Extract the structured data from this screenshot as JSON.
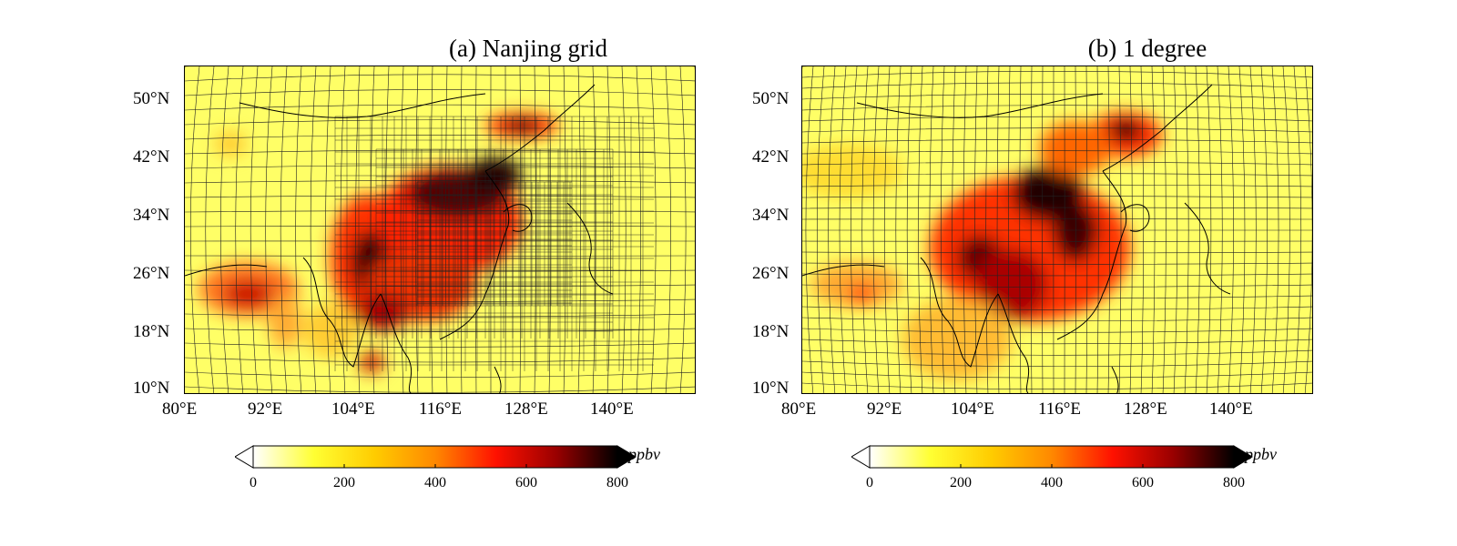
{
  "panels": [
    {
      "title": "(a) Nanjing grid",
      "grid": "stretched-cubed-sphere",
      "lat_labels": [
        "50°N",
        "42°N",
        "34°N",
        "26°N",
        "18°N",
        "10°N"
      ],
      "lon_labels": [
        "80°E",
        "92°E",
        "104°E",
        "116°E",
        "128°E",
        "140°E"
      ]
    },
    {
      "title": "(b) 1 degree",
      "grid": "cubed-sphere-1-degree",
      "lat_labels": [
        "50°N",
        "42°N",
        "34°N",
        "26°N",
        "18°N",
        "10°N"
      ],
      "lon_labels": [
        "80°E",
        "92°E",
        "104°E",
        "116°E",
        "128°E",
        "140°E"
      ]
    }
  ],
  "colorbar": {
    "ticks": [
      "0",
      "200",
      "400",
      "600",
      "800"
    ],
    "unit": "ppbv",
    "range": [
      0,
      800
    ],
    "colors": [
      "#ffffff",
      "#ffff33",
      "#ffcc00",
      "#ff8800",
      "#ff1100",
      "#990000",
      "#000000"
    ]
  },
  "map_extent": {
    "lon": [
      80,
      152
    ],
    "lat": [
      10,
      56
    ]
  }
}
